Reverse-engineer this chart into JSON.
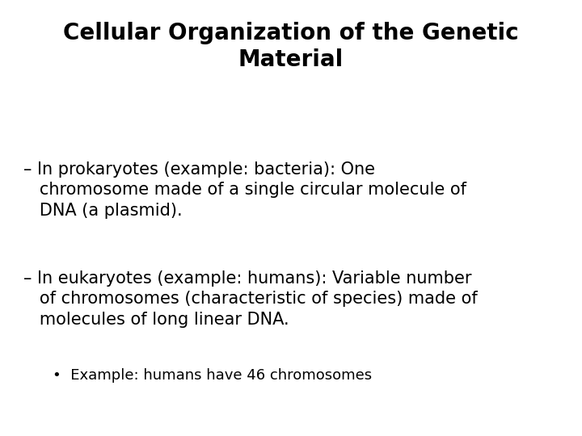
{
  "title_line1": "Cellular Organization of the Genetic",
  "title_line2": "Material",
  "background_color": "#ffffff",
  "text_color": "#000000",
  "title_fontsize": 20,
  "body_fontsize": 15,
  "bullet_fontsize": 13,
  "title_fontweight": "bold",
  "body_fontweight": "normal",
  "bullet1_line1": "– In prokaryotes (example: bacteria): One",
  "bullet1_line2": "   chromosome made of a single circular molecule of",
  "bullet1_line3": "   DNA (a plasmid).",
  "bullet2_line1": "– In eukaryotes (example: humans): Variable number",
  "bullet2_line2": "   of chromosomes (characteristic of species) made of",
  "bullet2_line3": "   molecules of long linear DNA.",
  "sub_bullet": "•  Example: humans have 46 chromosomes"
}
